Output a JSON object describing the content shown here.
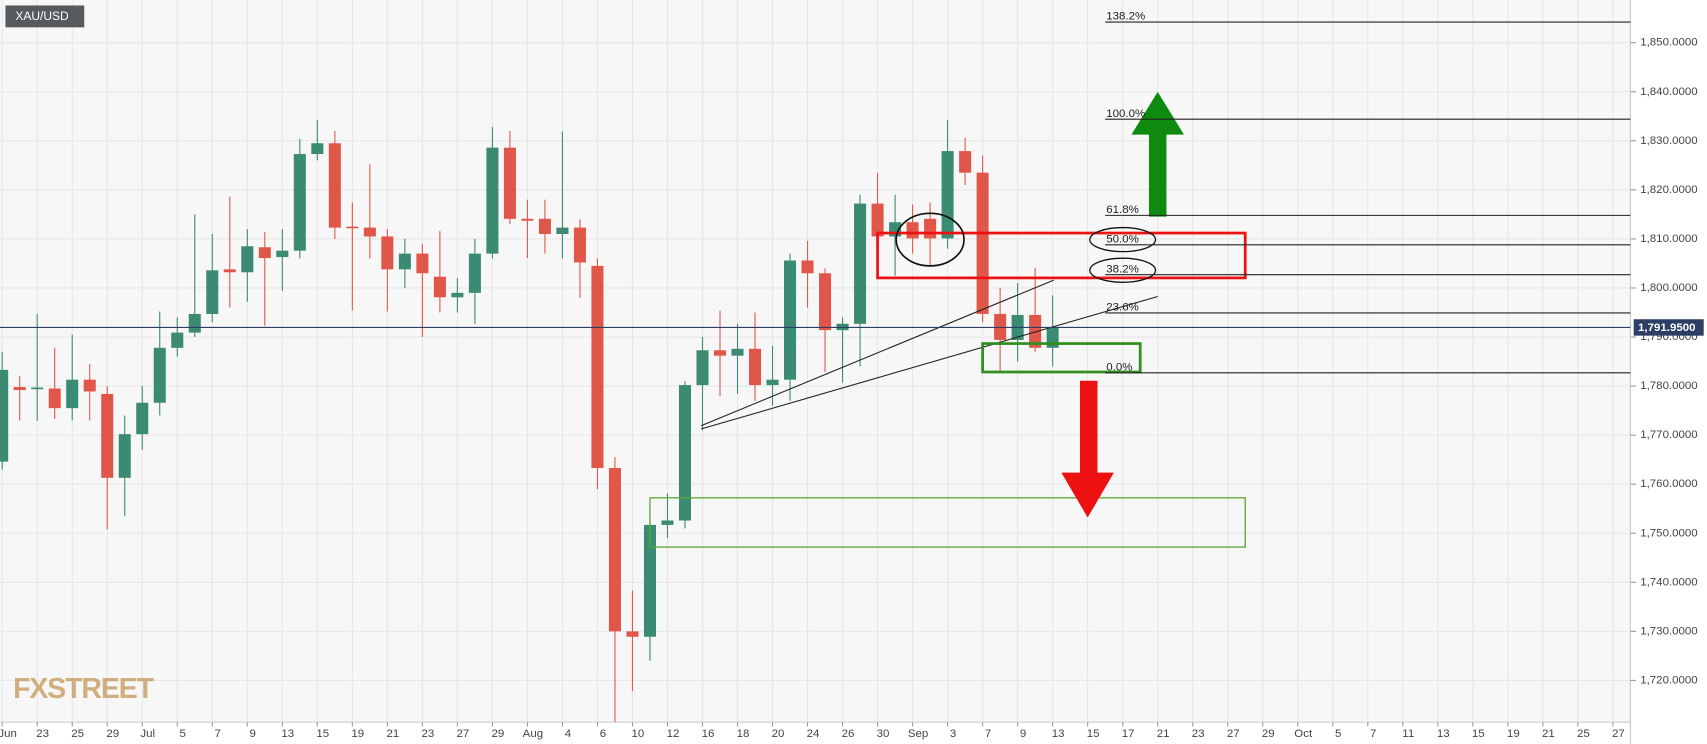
{
  "chart_data": {
    "type": "candlestick",
    "title": "XAU/USD",
    "watermark": "FXSTREET",
    "categories": [
      "Jun",
      null,
      "23",
      null,
      "25",
      null,
      "29",
      null,
      "Jul",
      null,
      "5",
      null,
      "7",
      null,
      "9",
      null,
      "13",
      null,
      "15",
      null,
      "19",
      null,
      "21",
      null,
      "23",
      null,
      "27",
      null,
      "29",
      null,
      "Aug",
      null,
      "4",
      null,
      "6",
      null,
      "10",
      null,
      "12",
      null,
      "16",
      null,
      "18",
      null,
      "20",
      null,
      "24",
      null,
      "26",
      null,
      "30",
      null,
      "Sep",
      null,
      "3",
      null,
      "7",
      null,
      "9",
      null,
      "13",
      null,
      "15",
      null,
      "17",
      null,
      "21",
      null,
      "23",
      null,
      "27",
      null,
      "29",
      null,
      "Oct",
      null,
      "5",
      null,
      "7",
      null,
      "11",
      null,
      "13",
      null,
      "15",
      null,
      "19",
      null,
      "21",
      null,
      "25",
      null,
      "27"
    ],
    "open": [
      1764.6,
      1779.8,
      1779.4,
      1779.5,
      1775.5,
      1781.3,
      1778.4,
      1761.3,
      1770.2,
      1776.6,
      1787.8,
      1790.9,
      1794.7,
      1803.8,
      1803.2,
      1808.3,
      1806.3,
      1807.6,
      1827.3,
      1829.5,
      1812.5,
      1812.3,
      1810.5,
      1803.8,
      1807.0,
      1802.3,
      1798.1,
      1799.0,
      1807.0,
      1828.6,
      1814.1,
      1814.1,
      1811.0,
      1812.3,
      1804.5,
      1763.3,
      1730.0,
      1728.9,
      1751.7,
      1752.6,
      1780.2,
      1787.3,
      1786.2,
      1787.6,
      1780.2,
      1781.3,
      1805.6,
      1803.0,
      1791.4,
      1792.7,
      1817.2,
      1810.5,
      1813.4,
      1814.1,
      1810.1,
      1827.9,
      1823.5,
      1794.7,
      1789.4,
      1794.5,
      1787.8,
      null,
      null,
      null,
      null,
      null,
      null,
      null,
      null,
      null,
      null,
      null,
      null,
      null,
      null,
      null,
      null,
      null,
      null,
      null,
      null,
      null,
      null,
      null,
      null,
      null,
      null,
      null,
      null,
      null,
      null,
      null,
      null
    ],
    "high": [
      1787,
      1782,
      1794.7,
      1787.8,
      1790.5,
      1784.5,
      1780,
      1774,
      1780,
      1795.2,
      1794,
      1815,
      1811,
      1818.6,
      1812,
      1811.4,
      1812,
      1830.4,
      1834.2,
      1832,
      1817.4,
      1825.2,
      1812,
      1810,
      1809,
      1811.6,
      1802,
      1810,
      1832.8,
      1832,
      1818,
      1818,
      1831.9,
      1814,
      1806,
      1765.5,
      1738.3,
      1756,
      1758.1,
      1781,
      1790,
      1795.4,
      1792.7,
      1795,
      1788.2,
      1807,
      1809.6,
      1804,
      1794,
      1819,
      1823.5,
      1819,
      1817,
      1817.4,
      1834.2,
      1830.6,
      1827,
      1800,
      1801,
      1804.1,
      1798.5,
      null,
      null,
      null,
      null,
      null,
      null,
      null,
      null,
      null,
      null,
      null,
      null,
      null,
      null,
      null,
      null,
      null,
      null,
      null,
      null,
      null,
      null,
      null,
      null,
      null,
      null,
      null,
      null,
      null,
      null,
      null,
      null
    ],
    "low": [
      1763,
      1773,
      1772.9,
      1773.3,
      1773,
      1773,
      1750.8,
      1753.5,
      1767,
      1774,
      1786,
      1790,
      1793,
      1796,
      1797.2,
      1792.3,
      1799.4,
      1806,
      1826,
      1810,
      1795.4,
      1806,
      1795.2,
      1800,
      1790,
      1795,
      1795,
      1792.7,
      1806,
      1813,
      1806.1,
      1807,
      1806,
      1798,
      1759,
      1711.5,
      1717.8,
      1724,
      1749,
      1751,
      1771,
      1778,
      1778.4,
      1777,
      1776,
      1777,
      1796,
      1782.9,
      1780.7,
      1784,
      1806,
      1802.5,
      1807,
      1804.7,
      1808,
      1821,
      1793,
      1782.9,
      1785,
      1787,
      1784,
      null,
      null,
      null,
      null,
      null,
      null,
      null,
      null,
      null,
      null,
      null,
      null,
      null,
      null,
      null,
      null,
      null,
      null,
      null,
      null,
      null,
      null,
      null,
      null,
      null,
      null,
      null,
      null,
      null,
      null,
      null,
      null
    ],
    "close": [
      1783.3,
      1779.2,
      1779.7,
      1775.5,
      1781.3,
      1778.9,
      1761.3,
      1770.2,
      1776.6,
      1787.8,
      1790.9,
      1794.7,
      1803.6,
      1803.2,
      1808.5,
      1806.1,
      1807.6,
      1827.3,
      1829.5,
      1812.3,
      1812.3,
      1810.5,
      1803.8,
      1807.0,
      1803.0,
      1798.1,
      1799.0,
      1807.0,
      1828.6,
      1814.1,
      1813.7,
      1811.0,
      1812.3,
      1805.2,
      1763.3,
      1730.0,
      1728.9,
      1751.7,
      1752.6,
      1780.2,
      1787.3,
      1786.2,
      1787.6,
      1780.2,
      1781.3,
      1805.6,
      1803.0,
      1791.4,
      1792.7,
      1817.2,
      1810.5,
      1813.4,
      1810.1,
      1810.1,
      1827.9,
      1823.5,
      1794.7,
      1789.4,
      1794.5,
      1787.8,
      1791.95,
      null,
      null,
      null,
      null,
      null,
      null,
      null,
      null,
      null,
      null,
      null,
      null,
      null,
      null,
      null,
      null,
      null,
      null,
      null,
      null,
      null,
      null,
      null,
      null,
      null,
      null,
      null,
      null,
      null,
      null,
      null,
      null
    ],
    "up_color": "#3a8a74",
    "down_color": "#e0574a",
    "ylim": [
      1711.5,
      1858.7
    ],
    "yticks": [
      {
        "value": 1720,
        "label": "1,720.0000"
      },
      {
        "value": 1730,
        "label": "1,730.0000"
      },
      {
        "value": 1740,
        "label": "1,740.0000"
      },
      {
        "value": 1750,
        "label": "1,750.0000"
      },
      {
        "value": 1760,
        "label": "1,760.0000"
      },
      {
        "value": 1770,
        "label": "1,770.0000"
      },
      {
        "value": 1780,
        "label": "1,780.0000"
      },
      {
        "value": 1790,
        "label": "1,790.0000"
      },
      {
        "value": 1800,
        "label": "1,800.0000"
      },
      {
        "value": 1810,
        "label": "1,810.0000"
      },
      {
        "value": 1820,
        "label": "1,820.0000"
      },
      {
        "value": 1830,
        "label": "1,830.0000"
      },
      {
        "value": 1840,
        "label": "1,840.0000"
      },
      {
        "value": 1850,
        "label": "1,850.0000"
      }
    ],
    "grid": true,
    "last_price": {
      "value": 1791.95,
      "label": "1,791.9500"
    },
    "last_price_color": "#2c3e66",
    "fib_levels": [
      {
        "label": "138.2%",
        "price": 1854.2
      },
      {
        "label": "100.0%",
        "price": 1834.4
      },
      {
        "label": "61.8%",
        "price": 1814.8
      },
      {
        "label": "50.0%",
        "price": 1808.8
      },
      {
        "label": "38.2%",
        "price": 1802.7
      },
      {
        "label": "23.6%",
        "price": 1794.9
      },
      {
        "label": "0.0%",
        "price": 1782.7
      }
    ]
  }
}
